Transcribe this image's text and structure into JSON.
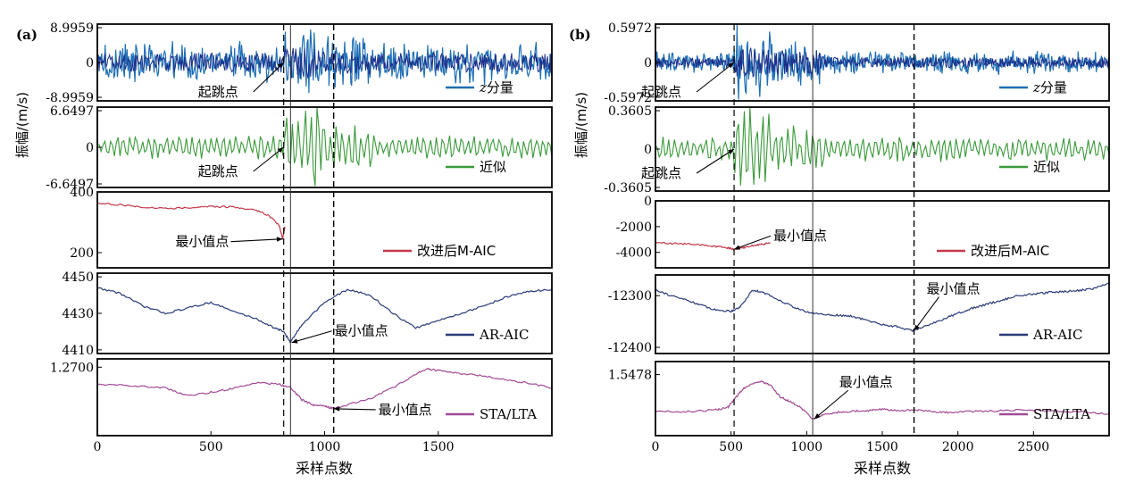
{
  "figure": {
    "panel_labels": [
      "(a)",
      "(b)"
    ],
    "ylabel": "振幅/(m/s)",
    "xlabel": "采样点数"
  },
  "colors": {
    "z_component": "#1e6fb5",
    "z_component_dark": "#1b2f8a",
    "approximation": "#3a9a3a",
    "maic": "#c23a4a",
    "ar_aic": "#2a3a78",
    "sta_lta": "#a24a96",
    "axes": "#000000"
  },
  "chart_data": [
    {
      "type": "line",
      "panel": "(a)",
      "x_range": [
        0,
        2000
      ],
      "x_ticks": [
        "0",
        "500",
        "1000",
        "1500"
      ],
      "x_tick_values": [
        0,
        500,
        1000,
        1500
      ],
      "xlabel": "采样点数",
      "ylabel": "振幅/(m/s)",
      "markers": {
        "dashed_onset": 820,
        "solid_reference": 850,
        "dashed_pick": 1040
      },
      "subplots": [
        {
          "series": "z分量",
          "kind": "z",
          "ylim": [
            -8.9959,
            8.9959
          ],
          "y_ticks": [
            "8.9959",
            "0",
            "-8.9959"
          ],
          "onset": 820,
          "annotation": "起跳点",
          "annotation_x": 820,
          "annotation_y": 0
        },
        {
          "series": "近似",
          "kind": "approx",
          "ylim": [
            -6.6497,
            6.6497
          ],
          "y_ticks": [
            "6.6497",
            "0",
            "-6.6497"
          ],
          "onset": 820,
          "annotation": "起跳点",
          "annotation_x": 820,
          "annotation_y": 0
        },
        {
          "series": "改进后M-AIC",
          "kind": "maic",
          "ylim": [
            150,
            400
          ],
          "y_ticks": [
            "400",
            "200"
          ],
          "y_tick_values": [
            400,
            200
          ],
          "points": [
            [
              0,
              362
            ],
            [
              100,
              358
            ],
            [
              200,
              350
            ],
            [
              300,
              346
            ],
            [
              400,
              348
            ],
            [
              500,
              352
            ],
            [
              600,
              350
            ],
            [
              700,
              340
            ],
            [
              760,
              320
            ],
            [
              800,
              290
            ],
            [
              815,
              245
            ],
            [
              820,
              265
            ],
            [
              825,
              285
            ]
          ],
          "annotation": "最小值点",
          "annotation_x": 815,
          "annotation_y": 245
        },
        {
          "series": "AR-AIC",
          "kind": "ar",
          "ylim": [
            4408,
            4452
          ],
          "y_ticks": [
            "4450",
            "4430",
            "4410"
          ],
          "y_tick_values": [
            4450,
            4430,
            4410
          ],
          "points": [
            [
              0,
              4444
            ],
            [
              100,
              4441
            ],
            [
              200,
              4434
            ],
            [
              300,
              4430
            ],
            [
              400,
              4433
            ],
            [
              500,
              4436
            ],
            [
              600,
              4431
            ],
            [
              700,
              4427
            ],
            [
              780,
              4422
            ],
            [
              820,
              4420
            ],
            [
              850,
              4414
            ],
            [
              900,
              4424
            ],
            [
              1000,
              4436
            ],
            [
              1100,
              4443
            ],
            [
              1200,
              4440
            ],
            [
              1300,
              4430
            ],
            [
              1400,
              4422
            ],
            [
              1500,
              4426
            ],
            [
              1600,
              4430
            ],
            [
              1700,
              4434
            ],
            [
              1800,
              4439
            ],
            [
              1900,
              4442
            ],
            [
              2000,
              4443
            ]
          ],
          "annotation": "最小值点",
          "annotation_x": 855,
          "annotation_y": 4414
        },
        {
          "series": "STA/LTA",
          "kind": "sta",
          "ylim": [
            0.2,
            1.4
          ],
          "y_ticks": [
            "1.2700"
          ],
          "y_tick_values": [
            1.27
          ],
          "points": [
            [
              0,
              1.0
            ],
            [
              100,
              1.0
            ],
            [
              200,
              0.97
            ],
            [
              300,
              0.95
            ],
            [
              400,
              0.82
            ],
            [
              500,
              0.88
            ],
            [
              600,
              0.94
            ],
            [
              700,
              1.03
            ],
            [
              800,
              1.0
            ],
            [
              850,
              0.95
            ],
            [
              900,
              0.76
            ],
            [
              950,
              0.68
            ],
            [
              1000,
              0.66
            ],
            [
              1040,
              0.62
            ],
            [
              1100,
              0.68
            ],
            [
              1200,
              0.78
            ],
            [
              1300,
              0.95
            ],
            [
              1400,
              1.16
            ],
            [
              1450,
              1.24
            ],
            [
              1500,
              1.22
            ],
            [
              1600,
              1.17
            ],
            [
              1700,
              1.13
            ],
            [
              1800,
              1.07
            ],
            [
              1900,
              1.02
            ],
            [
              2000,
              0.94
            ]
          ],
          "annotation": "最小值点",
          "annotation_x": 1040,
          "annotation_y": 0.62
        }
      ]
    },
    {
      "type": "line",
      "panel": "(b)",
      "x_range": [
        0,
        3000
      ],
      "x_ticks": [
        "0",
        "500",
        "1000",
        "1500",
        "2000",
        "2500"
      ],
      "x_tick_values": [
        0,
        500,
        1000,
        1500,
        2000,
        2500
      ],
      "xlabel": "采样点数",
      "ylabel": "振幅/(m/s)",
      "markers": {
        "dashed_onset": 520,
        "solid_reference": 1040,
        "dashed_pick": 1710
      },
      "subplots": [
        {
          "series": "z分量",
          "kind": "z",
          "ylim": [
            -0.5972,
            0.5972
          ],
          "y_ticks": [
            "0.5972",
            "0",
            "-0.5972"
          ],
          "onset": 520,
          "annotation": "起跳点",
          "annotation_x": 520,
          "annotation_y": 0
        },
        {
          "series": "近似",
          "kind": "approx",
          "ylim": [
            -0.3605,
            0.3605
          ],
          "y_ticks": [
            "0.3605",
            "0",
            "-0.3605"
          ],
          "onset": 520,
          "annotation": "起跳点",
          "annotation_x": 520,
          "annotation_y": 0
        },
        {
          "series": "改进后M-AIC",
          "kind": "maic",
          "ylim": [
            -5200,
            0
          ],
          "y_ticks": [
            "0",
            "-2000",
            "-4000"
          ],
          "y_tick_values": [
            0,
            -2000,
            -4000
          ],
          "points": [
            [
              0,
              -3250
            ],
            [
              100,
              -3300
            ],
            [
              200,
              -3350
            ],
            [
              300,
              -3420
            ],
            [
              400,
              -3550
            ],
            [
              480,
              -3660
            ],
            [
              520,
              -3760
            ],
            [
              580,
              -3640
            ],
            [
              640,
              -3480
            ],
            [
              700,
              -3380
            ],
            [
              760,
              -3260
            ]
          ],
          "annotation": "最小值点",
          "annotation_x": 520,
          "annotation_y": -3760
        },
        {
          "series": "AR-AIC",
          "kind": "ar",
          "ylim": [
            -12412,
            -12260
          ],
          "y_ticks": [
            "-12300",
            "-12400"
          ],
          "y_tick_values": [
            -12300,
            -12400
          ],
          "points": [
            [
              0,
              -12288
            ],
            [
              100,
              -12300
            ],
            [
              200,
              -12308
            ],
            [
              300,
              -12318
            ],
            [
              400,
              -12328
            ],
            [
              500,
              -12330
            ],
            [
              560,
              -12322
            ],
            [
              640,
              -12290
            ],
            [
              700,
              -12292
            ],
            [
              800,
              -12306
            ],
            [
              900,
              -12320
            ],
            [
              1000,
              -12332
            ],
            [
              1100,
              -12336
            ],
            [
              1200,
              -12338
            ],
            [
              1300,
              -12340
            ],
            [
              1400,
              -12348
            ],
            [
              1500,
              -12356
            ],
            [
              1600,
              -12360
            ],
            [
              1700,
              -12368
            ],
            [
              1800,
              -12357
            ],
            [
              1900,
              -12346
            ],
            [
              2000,
              -12334
            ],
            [
              2100,
              -12324
            ],
            [
              2200,
              -12316
            ],
            [
              2300,
              -12308
            ],
            [
              2400,
              -12300
            ],
            [
              2500,
              -12297
            ],
            [
              2600,
              -12294
            ],
            [
              2700,
              -12292
            ],
            [
              2800,
              -12290
            ],
            [
              2900,
              -12286
            ],
            [
              3000,
              -12276
            ]
          ],
          "annotation": "最小值点",
          "annotation_x": 1710,
          "annotation_y": -12368
        },
        {
          "series": "STA/LTA",
          "kind": "sta",
          "ylim": [
            0.6,
            1.75
          ],
          "y_ticks": [
            "1.5478"
          ],
          "y_tick_values": [
            1.5478
          ],
          "points": [
            [
              0,
              0.98
            ],
            [
              200,
              0.97
            ],
            [
              400,
              1.0
            ],
            [
              480,
              1.04
            ],
            [
              520,
              1.16
            ],
            [
              580,
              1.33
            ],
            [
              640,
              1.41
            ],
            [
              700,
              1.44
            ],
            [
              760,
              1.38
            ],
            [
              820,
              1.21
            ],
            [
              880,
              1.14
            ],
            [
              960,
              1.04
            ],
            [
              1040,
              0.86
            ],
            [
              1100,
              0.92
            ],
            [
              1200,
              0.96
            ],
            [
              1300,
              0.98
            ],
            [
              1400,
              0.99
            ],
            [
              1500,
              1.01
            ],
            [
              1600,
              0.99
            ],
            [
              1700,
              1.0
            ],
            [
              1800,
              0.98
            ],
            [
              1900,
              0.96
            ],
            [
              2000,
              0.97
            ],
            [
              2200,
              0.98
            ],
            [
              2400,
              1.0
            ],
            [
              2600,
              0.99
            ],
            [
              2800,
              0.97
            ],
            [
              3000,
              0.94
            ]
          ],
          "annotation": "最小值点",
          "annotation_x": 1050,
          "annotation_y": 0.86
        }
      ]
    }
  ]
}
